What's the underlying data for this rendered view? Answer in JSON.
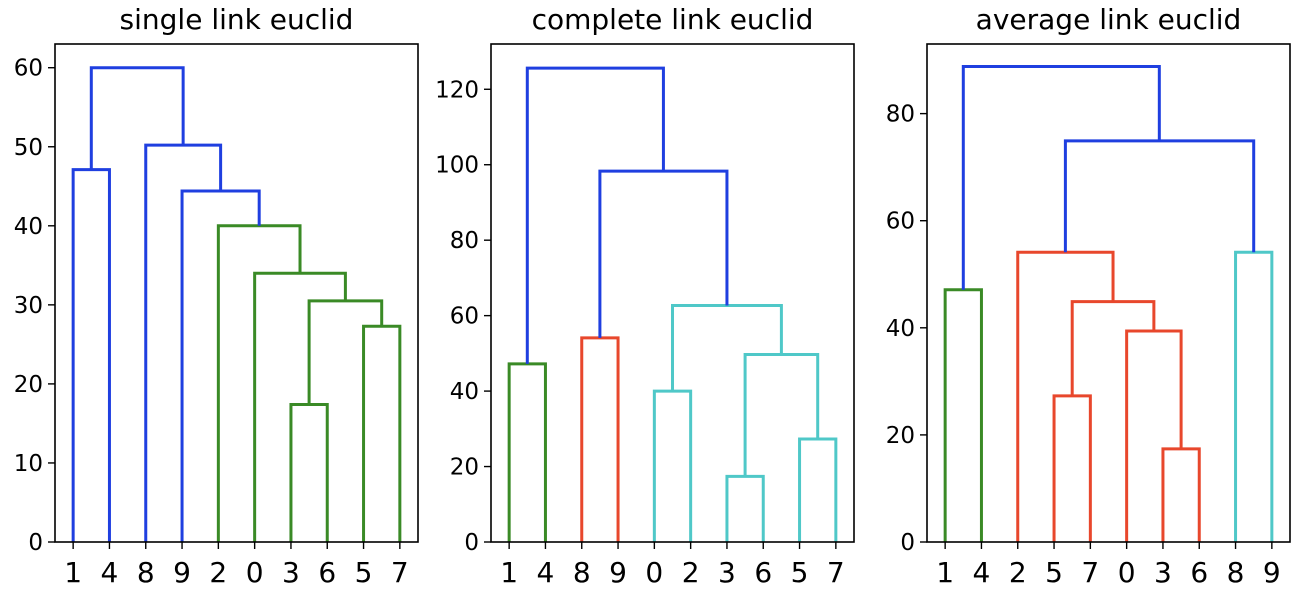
{
  "chart_data": [
    {
      "type": "dendrogram",
      "title": "single link euclid",
      "xlabel": "",
      "ylabel": "",
      "leaves": [
        "1",
        "4",
        "8",
        "9",
        "2",
        "0",
        "3",
        "6",
        "5",
        "7"
      ],
      "ylim": [
        0,
        63
      ],
      "yticks": [
        0,
        10,
        20,
        30,
        40,
        50,
        60
      ],
      "grid": false,
      "links": [
        {
          "x": [
            0.0,
            0.0,
            1.0,
            1.0
          ],
          "y": [
            0,
            47.1,
            47.1,
            0
          ],
          "color": "#1f3fe0"
        },
        {
          "x": [
            6.0,
            6.0,
            7.0,
            7.0
          ],
          "y": [
            0,
            17.4,
            17.4,
            0
          ],
          "color": "#3a8a26"
        },
        {
          "x": [
            8.0,
            8.0,
            9.0,
            9.0
          ],
          "y": [
            0,
            27.3,
            27.3,
            0
          ],
          "color": "#3a8a26"
        },
        {
          "x": [
            6.5,
            6.5,
            8.5,
            8.5
          ],
          "y": [
            17.4,
            30.5,
            30.5,
            27.3
          ],
          "color": "#3a8a26"
        },
        {
          "x": [
            5.0,
            5.0,
            7.5,
            7.5
          ],
          "y": [
            0,
            34.0,
            34.0,
            30.5
          ],
          "color": "#3a8a26"
        },
        {
          "x": [
            4.0,
            4.0,
            6.25,
            6.25
          ],
          "y": [
            0,
            40.0,
            40.0,
            34.0
          ],
          "color": "#3a8a26"
        },
        {
          "x": [
            3.0,
            3.0,
            5.125,
            5.125
          ],
          "y": [
            0,
            44.4,
            44.4,
            40.0
          ],
          "color": "#1f3fe0"
        },
        {
          "x": [
            2.0,
            2.0,
            4.0625,
            4.0625
          ],
          "y": [
            0,
            50.2,
            50.2,
            44.4
          ],
          "color": "#1f3fe0"
        },
        {
          "x": [
            0.5,
            0.5,
            3.03,
            3.03
          ],
          "y": [
            47.1,
            60.0,
            60.0,
            50.2
          ],
          "color": "#1f3fe0"
        }
      ]
    },
    {
      "type": "dendrogram",
      "title": "complete link euclid",
      "xlabel": "",
      "ylabel": "",
      "leaves": [
        "1",
        "4",
        "8",
        "9",
        "0",
        "2",
        "3",
        "6",
        "5",
        "7"
      ],
      "ylim": [
        0,
        132
      ],
      "yticks": [
        0,
        20,
        40,
        60,
        80,
        100,
        120
      ],
      "grid": false,
      "links": [
        {
          "x": [
            0.0,
            0.0,
            1.0,
            1.0
          ],
          "y": [
            0,
            47.2,
            47.2,
            0
          ],
          "color": "#3a8a26"
        },
        {
          "x": [
            2.0,
            2.0,
            3.0,
            3.0
          ],
          "y": [
            0,
            54.1,
            54.1,
            0
          ],
          "color": "#e8472c"
        },
        {
          "x": [
            4.0,
            4.0,
            5.0,
            5.0
          ],
          "y": [
            0,
            40.0,
            40.0,
            0
          ],
          "color": "#4fc8c8"
        },
        {
          "x": [
            6.0,
            6.0,
            7.0,
            7.0
          ],
          "y": [
            0,
            17.4,
            17.4,
            0
          ],
          "color": "#4fc8c8"
        },
        {
          "x": [
            8.0,
            8.0,
            9.0,
            9.0
          ],
          "y": [
            0,
            27.3,
            27.3,
            0
          ],
          "color": "#4fc8c8"
        },
        {
          "x": [
            6.5,
            6.5,
            8.5,
            8.5
          ],
          "y": [
            17.4,
            49.7,
            49.7,
            27.3
          ],
          "color": "#4fc8c8"
        },
        {
          "x": [
            4.5,
            4.5,
            7.5,
            7.5
          ],
          "y": [
            40.0,
            62.7,
            62.7,
            49.7
          ],
          "color": "#4fc8c8"
        },
        {
          "x": [
            2.5,
            2.5,
            6.0,
            6.0
          ],
          "y": [
            54.1,
            98.3,
            98.3,
            62.7
          ],
          "color": "#1f3fe0"
        },
        {
          "x": [
            0.5,
            0.5,
            4.25,
            4.25
          ],
          "y": [
            47.2,
            125.6,
            125.6,
            98.3
          ],
          "color": "#1f3fe0"
        }
      ]
    },
    {
      "type": "dendrogram",
      "title": "average link euclid",
      "xlabel": "",
      "ylabel": "",
      "leaves": [
        "1",
        "4",
        "2",
        "5",
        "7",
        "0",
        "3",
        "6",
        "8",
        "9"
      ],
      "ylim": [
        0,
        93
      ],
      "yticks": [
        0,
        20,
        40,
        60,
        80
      ],
      "grid": false,
      "links": [
        {
          "x": [
            0.0,
            0.0,
            1.0,
            1.0
          ],
          "y": [
            0,
            47.1,
            47.1,
            0
          ],
          "color": "#3a8a26"
        },
        {
          "x": [
            3.0,
            3.0,
            4.0,
            4.0
          ],
          "y": [
            0,
            27.3,
            27.3,
            0
          ],
          "color": "#e8472c"
        },
        {
          "x": [
            6.0,
            6.0,
            7.0,
            7.0
          ],
          "y": [
            0,
            17.4,
            17.4,
            0
          ],
          "color": "#e8472c"
        },
        {
          "x": [
            5.0,
            5.0,
            6.5,
            6.5
          ],
          "y": [
            0,
            39.4,
            39.4,
            17.4
          ],
          "color": "#e8472c"
        },
        {
          "x": [
            3.5,
            3.5,
            5.75,
            5.75
          ],
          "y": [
            27.3,
            44.9,
            44.9,
            39.4
          ],
          "color": "#e8472c"
        },
        {
          "x": [
            2.0,
            2.0,
            4.625,
            4.625
          ],
          "y": [
            0,
            54.1,
            54.1,
            44.9
          ],
          "color": "#e8472c"
        },
        {
          "x": [
            8.0,
            8.0,
            9.0,
            9.0
          ],
          "y": [
            0,
            54.1,
            54.1,
            0
          ],
          "color": "#4fc8c8"
        },
        {
          "x": [
            3.3125,
            3.3125,
            8.5,
            8.5
          ],
          "y": [
            54.1,
            74.9,
            74.9,
            54.1
          ],
          "color": "#1f3fe0"
        },
        {
          "x": [
            0.5,
            0.5,
            5.9,
            5.9
          ],
          "y": [
            47.1,
            88.8,
            88.8,
            74.9
          ],
          "color": "#1f3fe0"
        }
      ]
    }
  ]
}
